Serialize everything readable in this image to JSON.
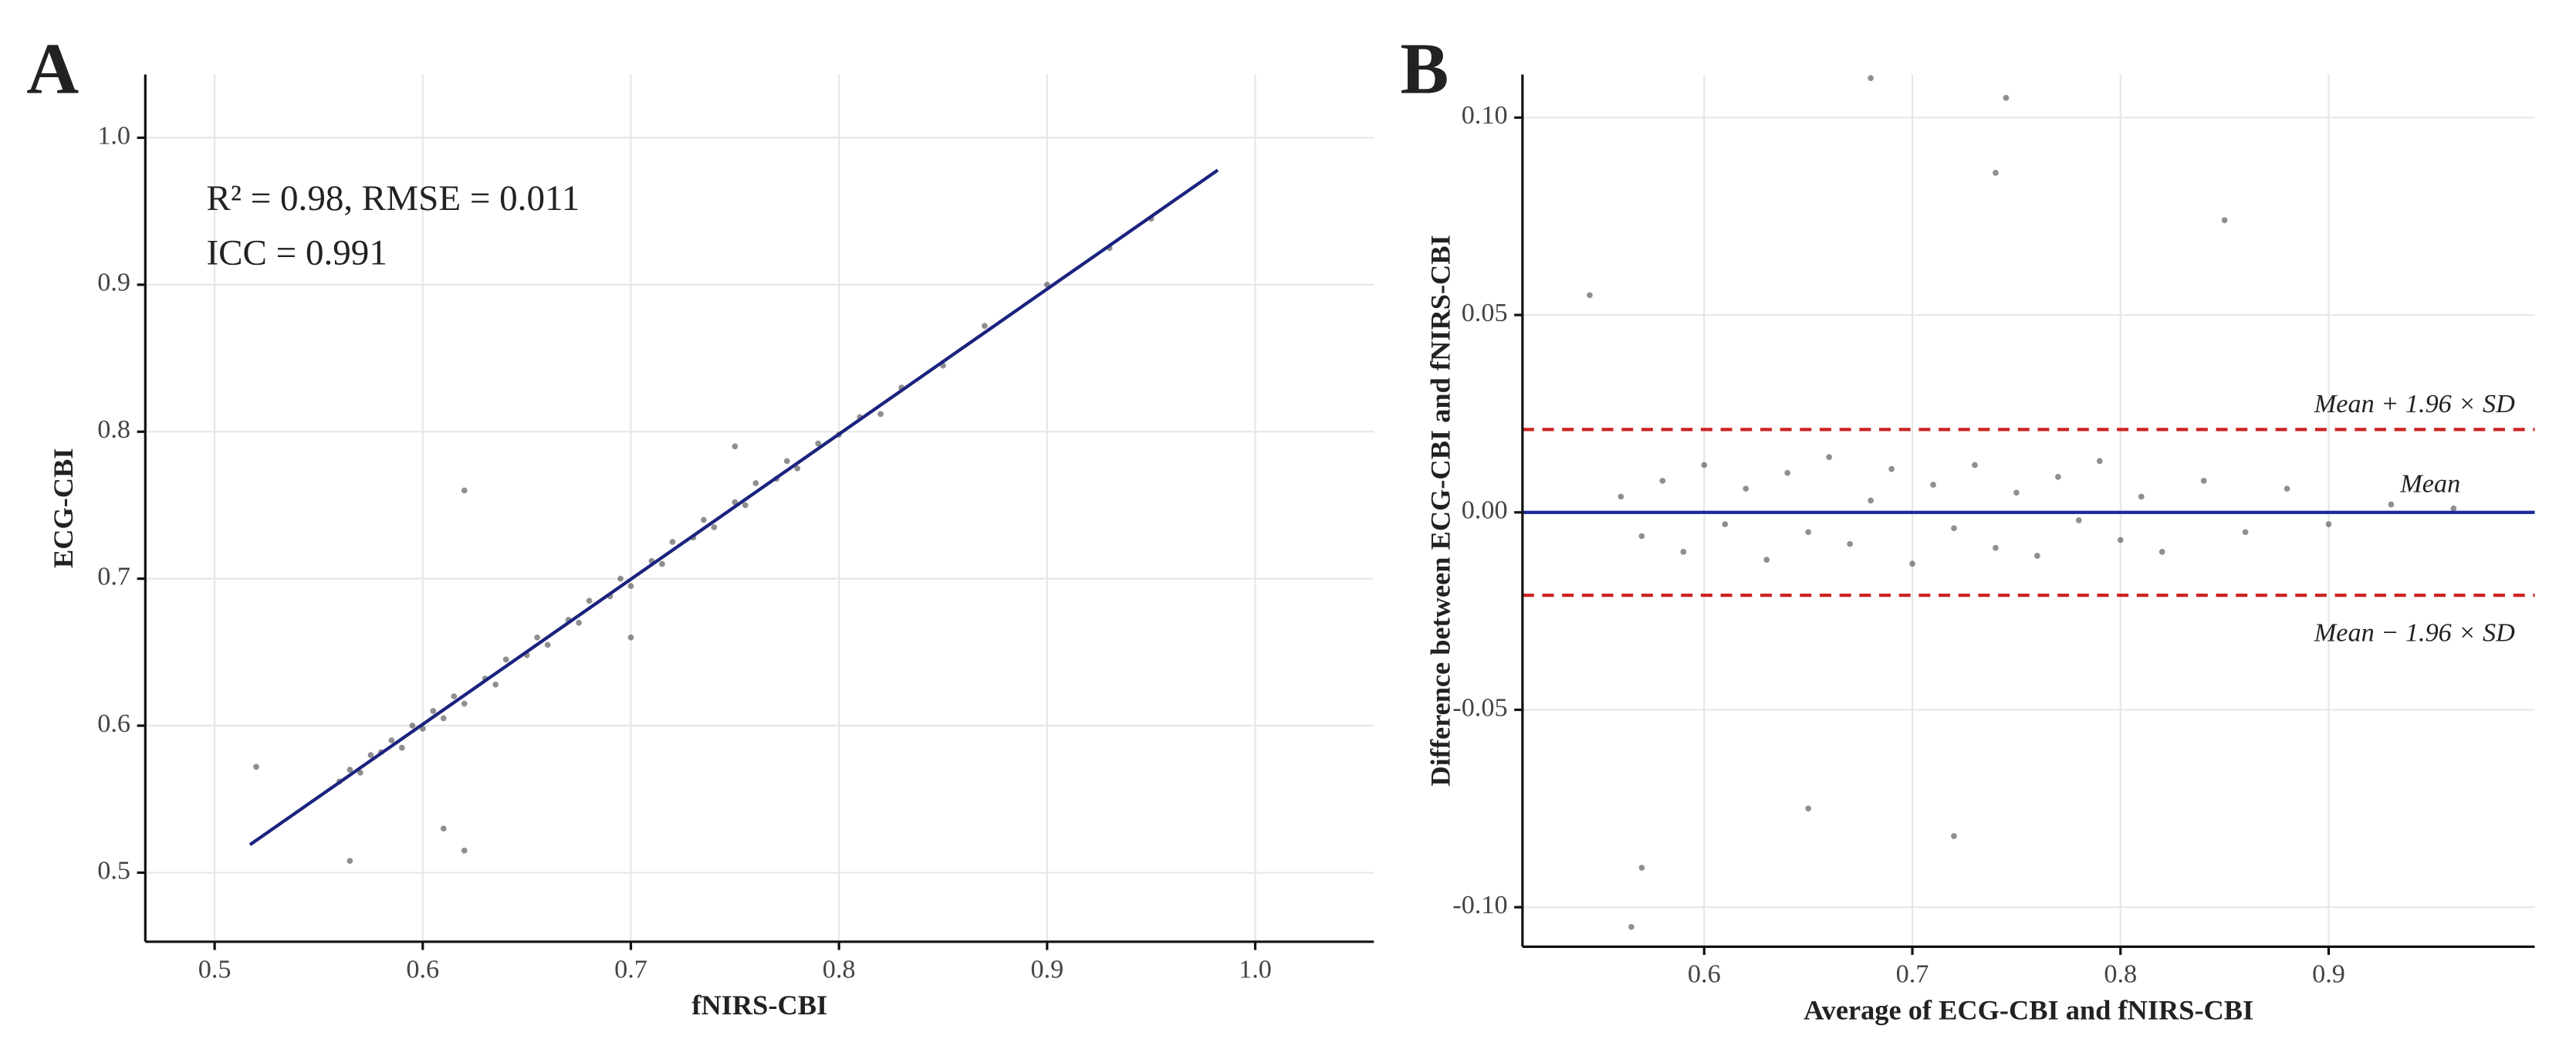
{
  "chart_data": [
    {
      "type": "scatter",
      "panel_label": "A",
      "x_label": "fNIRS-CBI",
      "y_label": "ECG-CBI",
      "annotations": [
        "R² = 0.98, RMSE = 0.011",
        "ICC = 0.991"
      ],
      "xlim": [
        0.4667,
        1.057
      ],
      "ylim": [
        0.453,
        1.043
      ],
      "xticks": [
        0.5,
        0.6,
        0.7,
        0.8,
        0.9,
        {
          "value": 1,
          "label": "1.0"
        }
      ],
      "yticks": [
        0.5,
        0.6,
        0.7,
        0.8,
        0.9,
        {
          "value": 1,
          "label": "1.0"
        }
      ],
      "grid": true,
      "color": "#444444",
      "x": [
        0.56,
        0.565,
        0.57,
        0.575,
        0.58,
        0.585,
        0.59,
        0.595,
        0.6,
        0.605,
        0.61,
        0.615,
        0.62,
        0.63,
        0.635,
        0.64,
        0.65,
        0.655,
        0.66,
        0.67,
        0.675,
        0.68,
        0.69,
        0.695,
        0.7,
        0.71,
        0.715,
        0.72,
        0.73,
        0.735,
        0.74,
        0.75,
        0.755,
        0.76,
        0.77,
        0.775,
        0.78,
        0.79,
        0.8,
        0.81,
        0.82,
        0.83,
        0.85,
        0.87,
        0.9,
        0.93,
        0.95,
        0.52,
        0.565,
        0.62,
        0.62,
        0.61,
        0.7,
        0.75
      ],
      "y": [
        0.562,
        0.57,
        0.568,
        0.58,
        0.582,
        0.59,
        0.585,
        0.6,
        0.598,
        0.61,
        0.605,
        0.62,
        0.615,
        0.632,
        0.628,
        0.645,
        0.648,
        0.66,
        0.655,
        0.672,
        0.67,
        0.685,
        0.688,
        0.7,
        0.695,
        0.712,
        0.71,
        0.725,
        0.728,
        0.74,
        0.735,
        0.752,
        0.75,
        0.765,
        0.768,
        0.78,
        0.775,
        0.792,
        0.798,
        0.81,
        0.812,
        0.83,
        0.845,
        0.872,
        0.9,
        0.925,
        0.945,
        0.572,
        0.508,
        0.76,
        0.515,
        0.53,
        0.66,
        0.79
      ],
      "fit_line": {
        "x": [
          0.517,
          0.982
        ],
        "y": [
          0.519,
          0.978
        ],
        "color": "#1a237e"
      }
    },
    {
      "type": "scatter",
      "panel_label": "B",
      "x_label": "Average of ECG-CBI and fNIRS-CBI",
      "y_label": "Difference between ECG-CBI and fNIRS-CBI",
      "xlim": [
        0.5127,
        0.999
      ],
      "ylim": [
        -0.11,
        0.1109
      ],
      "xticks": [
        0.6,
        0.7,
        0.8,
        0.9
      ],
      "yticks": [
        {
          "value": -0.1,
          "label": "-0.10"
        },
        {
          "value": -0.05,
          "label": "-0.05"
        },
        {
          "value": 0,
          "label": "0.00"
        },
        {
          "value": 0.05,
          "label": "0.05"
        },
        {
          "value": 0.1,
          "label": "0.10"
        }
      ],
      "grid": true,
      "color": "#444444",
      "x": [
        0.56,
        0.57,
        0.58,
        0.59,
        0.6,
        0.61,
        0.62,
        0.63,
        0.64,
        0.65,
        0.66,
        0.67,
        0.68,
        0.69,
        0.7,
        0.71,
        0.72,
        0.73,
        0.74,
        0.75,
        0.76,
        0.77,
        0.78,
        0.79,
        0.8,
        0.81,
        0.82,
        0.84,
        0.86,
        0.88,
        0.9,
        0.93,
        0.96,
        0.68,
        0.745,
        0.74,
        0.85,
        0.57,
        0.565,
        0.545,
        0.72,
        0.65
      ],
      "y": [
        0.004,
        -0.006,
        0.008,
        -0.01,
        0.012,
        -0.003,
        0.006,
        -0.012,
        0.01,
        -0.005,
        0.014,
        -0.008,
        0.003,
        0.011,
        -0.013,
        0.007,
        -0.004,
        0.012,
        -0.009,
        0.005,
        -0.011,
        0.009,
        -0.002,
        0.013,
        -0.007,
        0.004,
        -0.01,
        0.008,
        -0.005,
        0.006,
        -0.003,
        0.002,
        0.001,
        0.11,
        0.105,
        0.086,
        0.074,
        -0.09,
        -0.105,
        0.055,
        -0.082,
        -0.075
      ],
      "lines": [
        {
          "value": 0.021,
          "label": "Mean + 1.96 × SD",
          "color": "#cc2222",
          "dashed": true
        },
        {
          "value": 0,
          "label": "Mean",
          "color": "#1a2a9a",
          "dashed": false
        },
        {
          "value": -0.021,
          "label": "Mean − 1.96 × SD",
          "color": "#cc2222",
          "dashed": true
        }
      ]
    }
  ]
}
